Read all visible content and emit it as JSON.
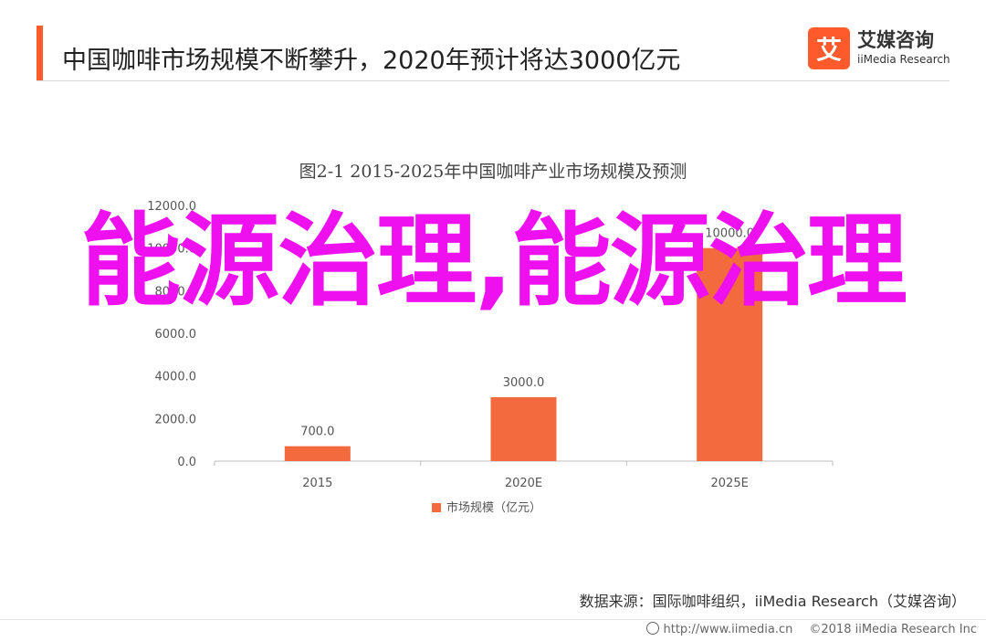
{
  "header": {
    "title": "中国咖啡市场规模不断攀升，2020年预计将达3000亿元",
    "logo_icon_char": "艾",
    "logo_cn": "艾媒咨询",
    "logo_en": "iiMedia Research"
  },
  "overlay_text": "能源治理,能源治理",
  "source": "数据来源：国际咖啡组织，iiMedia Research（艾媒咨询）",
  "footer": {
    "url": "http://www.iimedia.cn",
    "copyright": "©2018  iiMedia Research  Inc"
  },
  "chart_data": {
    "type": "bar",
    "title": "图2-1 2015-2025年中国咖啡产业市场规模及预测",
    "categories": [
      "2015",
      "2020E",
      "2025E"
    ],
    "series": [
      {
        "name": "市场规模（亿元）",
        "values": [
          700.0,
          3000.0,
          10000.0
        ],
        "color": "#f26a3d"
      }
    ],
    "data_labels": [
      "700.0",
      "3000.0",
      "10000.0"
    ],
    "ylim": [
      0,
      12000
    ],
    "yticks": [
      "0.0",
      "2000.0",
      "4000.0",
      "6000.0",
      "8000.0",
      "10000.0",
      "12000.0"
    ],
    "grid": false,
    "legend_position": "bottom"
  }
}
